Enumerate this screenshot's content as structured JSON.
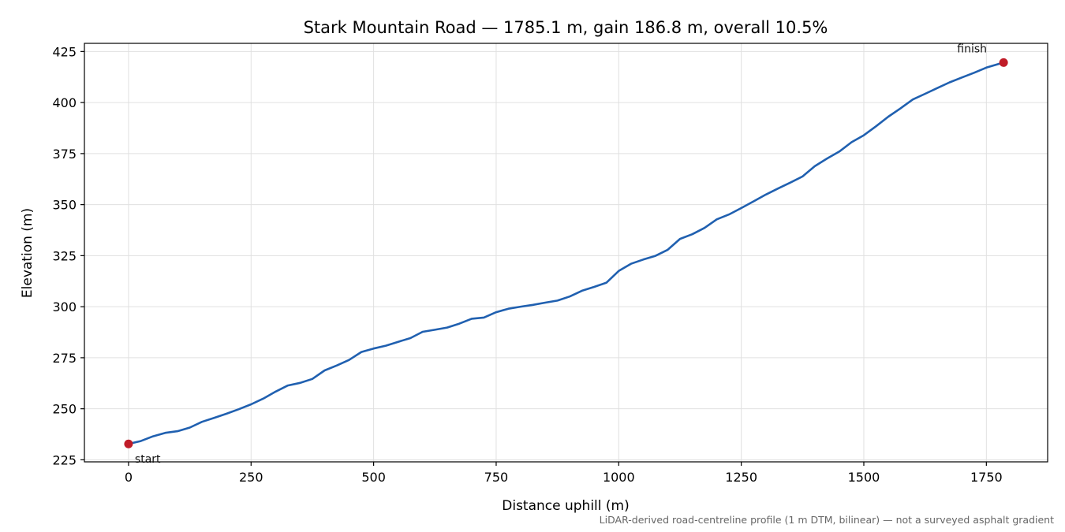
{
  "chart_data": {
    "type": "line",
    "title": "Stark Mountain Road — 1785.1 m, gain 186.8 m, overall 10.5%",
    "xlabel": "Distance uphill (m)",
    "ylabel": "Elevation (m)",
    "xlim": [
      -90,
      1875
    ],
    "ylim": [
      224,
      429
    ],
    "xticks": [
      0,
      250,
      500,
      750,
      1000,
      1250,
      1500,
      1750
    ],
    "yticks": [
      225,
      250,
      275,
      300,
      325,
      350,
      375,
      400,
      425
    ],
    "grid": true,
    "series": [
      {
        "color": "#2060b0",
        "points": [
          [
            0,
            232.8
          ],
          [
            25,
            234.2
          ],
          [
            50,
            236.5
          ],
          [
            75,
            238.2
          ],
          [
            100,
            239.0
          ],
          [
            125,
            240.8
          ],
          [
            150,
            243.6
          ],
          [
            175,
            245.6
          ],
          [
            200,
            247.6
          ],
          [
            225,
            249.8
          ],
          [
            250,
            252.2
          ],
          [
            275,
            255.0
          ],
          [
            300,
            258.4
          ],
          [
            325,
            261.4
          ],
          [
            350,
            262.7
          ],
          [
            375,
            264.6
          ],
          [
            400,
            268.8
          ],
          [
            425,
            271.2
          ],
          [
            450,
            273.9
          ],
          [
            475,
            277.8
          ],
          [
            500,
            279.5
          ],
          [
            525,
            280.9
          ],
          [
            550,
            282.8
          ],
          [
            575,
            284.6
          ],
          [
            600,
            287.7
          ],
          [
            625,
            288.7
          ],
          [
            650,
            289.8
          ],
          [
            675,
            291.7
          ],
          [
            700,
            294.1
          ],
          [
            725,
            294.7
          ],
          [
            750,
            297.3
          ],
          [
            775,
            299.0
          ],
          [
            800,
            300.0
          ],
          [
            825,
            300.9
          ],
          [
            850,
            302.0
          ],
          [
            875,
            303.0
          ],
          [
            900,
            305.0
          ],
          [
            925,
            307.8
          ],
          [
            950,
            309.7
          ],
          [
            975,
            311.8
          ],
          [
            1000,
            317.5
          ],
          [
            1025,
            321.0
          ],
          [
            1050,
            323.1
          ],
          [
            1075,
            324.9
          ],
          [
            1100,
            327.9
          ],
          [
            1125,
            333.2
          ],
          [
            1150,
            335.5
          ],
          [
            1175,
            338.6
          ],
          [
            1200,
            342.8
          ],
          [
            1225,
            345.2
          ],
          [
            1250,
            348.3
          ],
          [
            1275,
            351.6
          ],
          [
            1300,
            354.9
          ],
          [
            1325,
            357.9
          ],
          [
            1350,
            360.8
          ],
          [
            1375,
            363.8
          ],
          [
            1400,
            368.8
          ],
          [
            1425,
            372.6
          ],
          [
            1450,
            376.0
          ],
          [
            1475,
            380.6
          ],
          [
            1500,
            384.0
          ],
          [
            1525,
            388.4
          ],
          [
            1550,
            393.1
          ],
          [
            1575,
            397.2
          ],
          [
            1600,
            401.5
          ],
          [
            1625,
            404.3
          ],
          [
            1650,
            407.1
          ],
          [
            1675,
            409.9
          ],
          [
            1700,
            412.3
          ],
          [
            1725,
            414.6
          ],
          [
            1750,
            417.1
          ],
          [
            1785.1,
            419.6
          ]
        ]
      }
    ],
    "markers": [
      {
        "label": "start",
        "x": 0,
        "y": 232.8,
        "color": "#c01c28"
      },
      {
        "label": "finish",
        "x": 1785.1,
        "y": 419.6,
        "color": "#c01c28"
      }
    ],
    "footnote": "LiDAR-derived road-centreline profile (1 m DTM, bilinear) — not a surveyed asphalt gradient"
  }
}
